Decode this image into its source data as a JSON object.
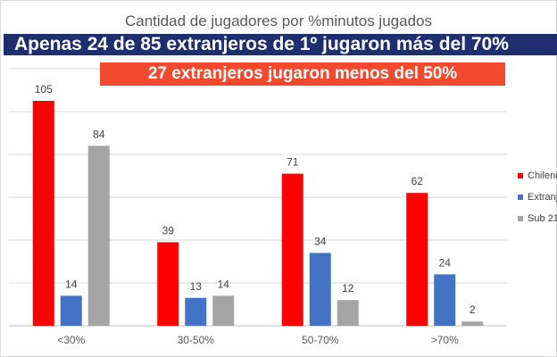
{
  "chart_data": {
    "type": "bar",
    "title": "Cantidad de jugadores por %minutos jugados",
    "categories": [
      "<30%",
      "30-50%",
      "50-70%",
      ">70%"
    ],
    "series": [
      {
        "name": "Chilenos",
        "color": "#ff0000",
        "values": [
          105,
          39,
          71,
          62
        ]
      },
      {
        "name": "Extranjeros",
        "color": "#4472c4",
        "values": [
          14,
          13,
          34,
          24
        ]
      },
      {
        "name": "Sub 21",
        "color": "#a5a5a5",
        "values": [
          84,
          14,
          12,
          2
        ]
      }
    ],
    "ylim": [
      0,
      120
    ],
    "grid": true,
    "legend": "right",
    "xlabel": "",
    "ylabel": ""
  },
  "banners": {
    "top": "Apenas 24 de 85 extranjeros de 1º jugaron más del 70%",
    "sub": "27 extranjeros jugaron menos del 50%"
  }
}
